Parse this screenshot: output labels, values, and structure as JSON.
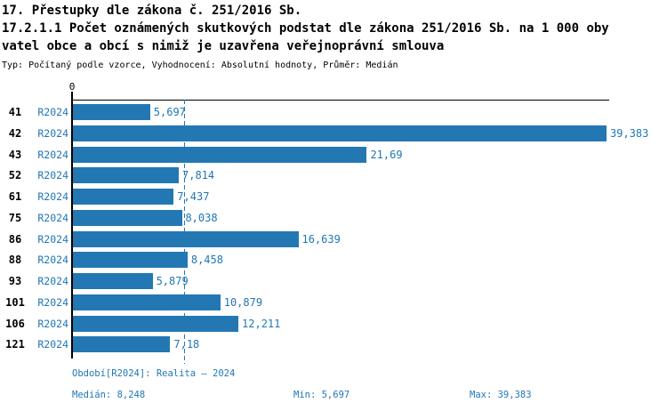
{
  "header": {
    "title": "17. Přestupky dle zákona č. 251/2016 Sb.",
    "subtitle_line1": "17.2.1.1 Počet oznámených skutkových podstat dle zákona 251/2016 Sb. na 1 000 oby",
    "subtitle_line2": "vatel obce a obcí s nimiž je uzavřena veřejnoprávní smlouva",
    "meta": "Typ: Počítaný podle vzorce, Vyhodnocení: Absolutní hodnoty, Průměr: Medián"
  },
  "chart_data": {
    "type": "bar",
    "orientation": "horizontal",
    "x_axis": {
      "min": 0,
      "max": 39.383,
      "tick_labels": [
        "0"
      ],
      "position": "top"
    },
    "series_name": "R2024",
    "categories": [
      "41",
      "42",
      "43",
      "52",
      "61",
      "75",
      "86",
      "88",
      "93",
      "101",
      "106",
      "121"
    ],
    "series": [
      {
        "name": "R2024",
        "values": [
          5.697,
          39.383,
          21.69,
          7.814,
          7.437,
          8.038,
          16.639,
          8.458,
          5.879,
          10.879,
          12.211,
          7.18
        ],
        "value_labels": [
          "5,697",
          "39,383",
          "21,69",
          "7,814",
          "7,437",
          "8,038",
          "16,639",
          "8,458",
          "5,879",
          "10,879",
          "12,211",
          "7,18"
        ]
      }
    ],
    "median_value": 8.248,
    "grid": "median-dashed-line-only",
    "legend_position": "none",
    "colors": {
      "bar": "#2378b4",
      "accent_text": "#1f77b4",
      "axis": "#000000"
    }
  },
  "footer": {
    "period": "Období[R2024]: Realita – 2024",
    "median": "Medián: 8,248",
    "min": "Min: 5,697",
    "max": "Max: 39,383"
  }
}
